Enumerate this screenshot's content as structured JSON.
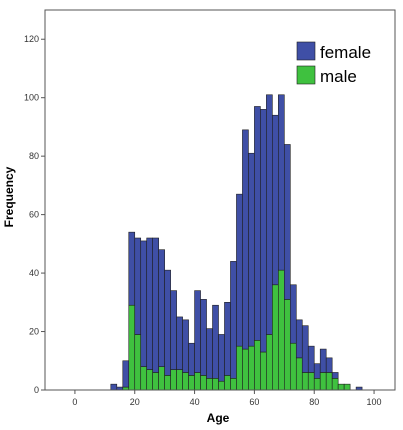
{
  "chart_data": {
    "type": "bar",
    "subtype": "stacked-histogram",
    "title": "",
    "xlabel": "Age",
    "ylabel": "Frequency",
    "xlim": [
      -10,
      107
    ],
    "ylim": [
      0,
      130
    ],
    "x_ticks": [
      0,
      20,
      40,
      60,
      80,
      100
    ],
    "y_ticks": [
      0,
      20,
      40,
      60,
      80,
      100,
      120
    ],
    "bin_width": 2,
    "legend_position": "top-right",
    "grid": false,
    "colors": {
      "female": "#3f4fa6",
      "male": "#3fc13f",
      "bar_edge": "#1f1f1f",
      "frame": "#555555"
    },
    "bin_starts": [
      12,
      14,
      16,
      18,
      20,
      22,
      24,
      26,
      28,
      30,
      32,
      34,
      36,
      38,
      40,
      42,
      44,
      46,
      48,
      50,
      52,
      54,
      56,
      58,
      60,
      62,
      64,
      66,
      68,
      70,
      72,
      74,
      76,
      78,
      80,
      82,
      84,
      86,
      88,
      90,
      92,
      94
    ],
    "series": [
      {
        "name": "male",
        "values": [
          0,
          0,
          1,
          29,
          19,
          8,
          7,
          6,
          8,
          5,
          7,
          7,
          6,
          5,
          6,
          5,
          4,
          4,
          3,
          5,
          4,
          15,
          14,
          15,
          17,
          13,
          19,
          36,
          41,
          31,
          16,
          11,
          6,
          6,
          4,
          6,
          6,
          4,
          2,
          2,
          0,
          0
        ]
      },
      {
        "name": "female",
        "values": [
          2,
          1,
          9,
          25,
          33,
          43,
          45,
          46,
          40,
          36,
          27,
          18,
          18,
          11,
          28,
          26,
          17,
          25,
          16,
          25,
          40,
          52,
          75,
          66,
          80,
          83,
          82,
          58,
          60,
          53,
          20,
          13,
          16,
          9,
          5,
          8,
          5,
          2,
          0,
          0,
          0,
          1
        ]
      }
    ]
  }
}
